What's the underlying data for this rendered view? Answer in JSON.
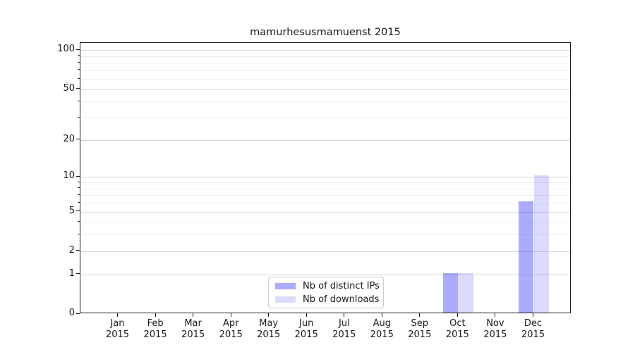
{
  "title": "mamurhesusmamuenst 2015",
  "legend": {
    "items": [
      {
        "label": "Nb of distinct IPs",
        "color": "rgba(0,0,255,0.33)"
      },
      {
        "label": "Nb of downloads",
        "color": "rgba(0,0,255,0.14)"
      }
    ]
  },
  "x_axis": {
    "months": [
      "Jan",
      "Feb",
      "Mar",
      "Apr",
      "May",
      "Jun",
      "Jul",
      "Aug",
      "Sep",
      "Oct",
      "Nov",
      "Dec"
    ],
    "year": "2015"
  },
  "y_axis": {
    "major_ticks": [
      {
        "value": 100,
        "label": "100"
      },
      {
        "value": 50,
        "label": "50"
      },
      {
        "value": 20,
        "label": "20"
      },
      {
        "value": 10,
        "label": "10"
      },
      {
        "value": 5,
        "label": "5"
      },
      {
        "value": 2,
        "label": "2"
      },
      {
        "value": 1,
        "label": "1"
      },
      {
        "value": 0,
        "label": "0"
      }
    ],
    "minor_ticks": [
      3,
      4,
      6,
      7,
      8,
      9,
      30,
      40,
      60,
      70,
      80,
      90
    ]
  },
  "chart_data": {
    "type": "bar",
    "title": "mamurhesusmamuenst 2015",
    "categories": [
      "Jan 2015",
      "Feb 2015",
      "Mar 2015",
      "Apr 2015",
      "May 2015",
      "Jun 2015",
      "Jul 2015",
      "Aug 2015",
      "Sep 2015",
      "Oct 2015",
      "Nov 2015",
      "Dec 2015"
    ],
    "series": [
      {
        "name": "Nb of distinct IPs",
        "color": "rgba(0,0,255,0.33)",
        "values": [
          0,
          0,
          0,
          0,
          0,
          0,
          0,
          0,
          0,
          1,
          0,
          6
        ]
      },
      {
        "name": "Nb of downloads",
        "color": "rgba(0,0,255,0.14)",
        "values": [
          0,
          0,
          0,
          0,
          0,
          0,
          0,
          0,
          0,
          1,
          0,
          10
        ]
      }
    ],
    "yscale": "log1p",
    "ylim": [
      0,
      113
    ],
    "y_ticks": [
      0,
      1,
      2,
      5,
      10,
      20,
      50,
      100
    ],
    "xlabel": "",
    "ylabel": "",
    "grid": "horizontal major+minor",
    "legend_position": "lower center-left inside plot"
  }
}
